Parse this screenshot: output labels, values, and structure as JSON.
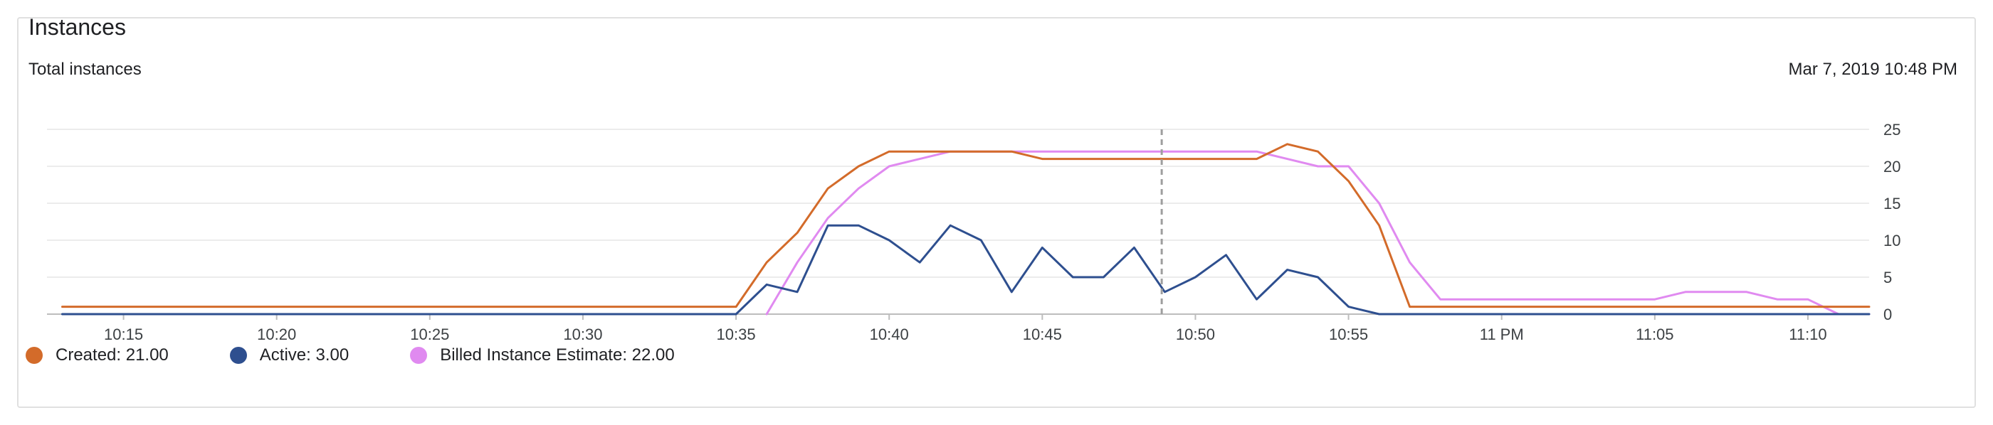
{
  "panel": {
    "title": "Instances",
    "subtitle": "Total instances",
    "timestamp": "Mar 7, 2019 10:48 PM"
  },
  "legend": [
    {
      "label": "Created: 21.00",
      "color": "#d36b2a",
      "icon": "legend-dot-icon"
    },
    {
      "label": "Active: 3.00",
      "color": "#2e4f8f",
      "icon": "legend-dot-icon"
    },
    {
      "label": "Billed Instance Estimate: 22.00",
      "color": "#e08af0",
      "icon": "legend-dot-icon"
    }
  ],
  "chart_data": {
    "type": "line",
    "title": "",
    "xlabel": "",
    "ylabel": "",
    "xlim": [
      12.5,
      72
    ],
    "ylim": [
      0,
      25
    ],
    "yticks": [
      0,
      5,
      10,
      15,
      20,
      25
    ],
    "xticks": [
      {
        "value": 15,
        "label": "10:15"
      },
      {
        "value": 20,
        "label": "10:20"
      },
      {
        "value": 25,
        "label": "10:25"
      },
      {
        "value": 30,
        "label": "10:30"
      },
      {
        "value": 35,
        "label": "10:35"
      },
      {
        "value": 40,
        "label": "10:40"
      },
      {
        "value": 45,
        "label": "10:45"
      },
      {
        "value": 50,
        "label": "10:50"
      },
      {
        "value": 55,
        "label": "10:55"
      },
      {
        "value": 60,
        "label": "11 PM"
      },
      {
        "value": 65,
        "label": "11:05"
      },
      {
        "value": 70,
        "label": "11:10"
      }
    ],
    "grid": true,
    "y_axis_position": "right",
    "cursor_x": 48.9,
    "legend_position": "bottom-left",
    "series": [
      {
        "name": "Billed Instance Estimate",
        "color": "#e08af0",
        "points": [
          [
            36,
            0
          ],
          [
            37,
            7
          ],
          [
            38,
            13
          ],
          [
            39,
            17
          ],
          [
            40,
            20
          ],
          [
            41,
            21
          ],
          [
            42,
            22
          ],
          [
            43,
            22
          ],
          [
            44,
            22
          ],
          [
            45,
            22
          ],
          [
            46,
            22
          ],
          [
            47,
            22
          ],
          [
            48,
            22
          ],
          [
            49,
            22
          ],
          [
            50,
            22
          ],
          [
            51,
            22
          ],
          [
            52,
            22
          ],
          [
            53,
            21
          ],
          [
            54,
            20
          ],
          [
            55,
            20
          ],
          [
            56,
            15
          ],
          [
            57,
            7
          ],
          [
            58,
            2
          ],
          [
            59,
            2
          ],
          [
            60,
            2
          ],
          [
            61,
            2
          ],
          [
            62,
            2
          ],
          [
            63,
            2
          ],
          [
            64,
            2
          ],
          [
            65,
            2
          ],
          [
            66,
            3
          ],
          [
            67,
            3
          ],
          [
            68,
            3
          ],
          [
            69,
            2
          ],
          [
            70,
            2
          ],
          [
            71,
            0
          ],
          [
            72,
            0
          ]
        ]
      },
      {
        "name": "Created",
        "color": "#d36b2a",
        "points": [
          [
            13,
            1
          ],
          [
            14,
            1
          ],
          [
            20,
            1
          ],
          [
            25,
            1
          ],
          [
            30,
            1
          ],
          [
            35,
            1
          ],
          [
            36,
            7
          ],
          [
            37,
            11
          ],
          [
            38,
            17
          ],
          [
            39,
            20
          ],
          [
            40,
            22
          ],
          [
            41,
            22
          ],
          [
            42,
            22
          ],
          [
            43,
            22
          ],
          [
            44,
            22
          ],
          [
            45,
            21
          ],
          [
            46,
            21
          ],
          [
            47,
            21
          ],
          [
            48,
            21
          ],
          [
            49,
            21
          ],
          [
            50,
            21
          ],
          [
            51,
            21
          ],
          [
            52,
            21
          ],
          [
            53,
            23
          ],
          [
            54,
            22
          ],
          [
            55,
            18
          ],
          [
            56,
            12
          ],
          [
            57,
            1
          ],
          [
            58,
            1
          ],
          [
            60,
            1
          ],
          [
            65,
            1
          ],
          [
            70,
            1
          ],
          [
            72,
            1
          ]
        ]
      },
      {
        "name": "Active",
        "color": "#2e4f8f",
        "points": [
          [
            13,
            0
          ],
          [
            20,
            0
          ],
          [
            25,
            0
          ],
          [
            30,
            0
          ],
          [
            35,
            0
          ],
          [
            36,
            4
          ],
          [
            37,
            3
          ],
          [
            38,
            12
          ],
          [
            39,
            12
          ],
          [
            40,
            10
          ],
          [
            41,
            7
          ],
          [
            42,
            12
          ],
          [
            43,
            10
          ],
          [
            44,
            3
          ],
          [
            45,
            9
          ],
          [
            46,
            5
          ],
          [
            47,
            5
          ],
          [
            48,
            9
          ],
          [
            49,
            3
          ],
          [
            50,
            5
          ],
          [
            51,
            8
          ],
          [
            52,
            2
          ],
          [
            53,
            6
          ],
          [
            54,
            5
          ],
          [
            55,
            1
          ],
          [
            56,
            0
          ],
          [
            60,
            0
          ],
          [
            65,
            0
          ],
          [
            70,
            0
          ],
          [
            72,
            0
          ]
        ]
      }
    ]
  }
}
